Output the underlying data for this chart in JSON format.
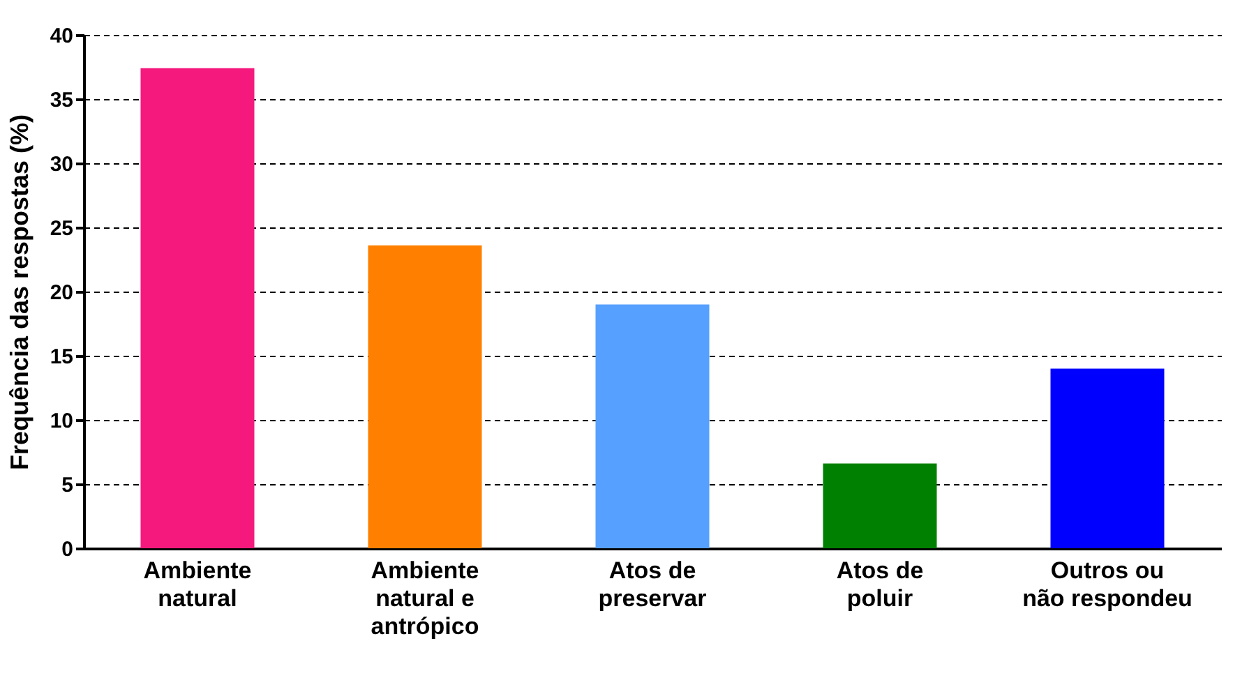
{
  "chart_data": {
    "type": "bar",
    "ylabel": "Frequência das respostas (%)",
    "categories": [
      "Ambiente\nnatural",
      "Ambiente\nnatural e\nantrópico",
      "Atos de\npreservar",
      "Atos de\npoluir",
      "Outros ou\nnão respondeu"
    ],
    "values": [
      37.4,
      23.6,
      19.0,
      6.6,
      14.0
    ],
    "colors": [
      "#f5197e",
      "#ff8000",
      "#56a0ff",
      "#008000",
      "#0000ff"
    ],
    "ylim": [
      0,
      40
    ],
    "yticks": [
      0,
      5,
      10,
      15,
      20,
      25,
      30,
      35,
      40
    ],
    "grid": "y"
  }
}
